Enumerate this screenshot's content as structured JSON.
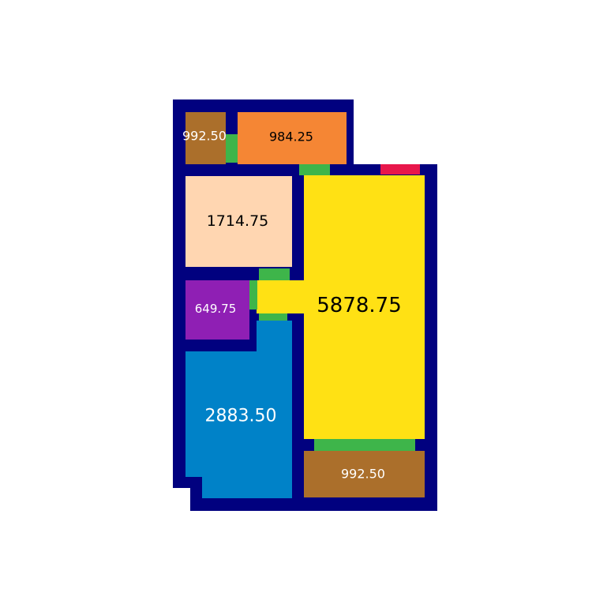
{
  "colors": {
    "wall": "#01017f",
    "door": "#3eb54a",
    "entrance": "#e8174b",
    "background": "#ffffff"
  },
  "rooms": [
    {
      "id": "room-top-left-brown",
      "label": "992.50",
      "fill": "#ab6f2b",
      "text": "#ffffff"
    },
    {
      "id": "room-top-orange",
      "label": "984.25",
      "fill": "#f58634",
      "text": "#000000"
    },
    {
      "id": "room-peach",
      "label": "1714.75",
      "fill": "#ffd6b1",
      "text": "#000000"
    },
    {
      "id": "room-purple",
      "label": "649.75",
      "fill": "#8f1fb4",
      "text": "#ffffff"
    },
    {
      "id": "room-blue",
      "label": "2883.50",
      "fill": "#0082c8",
      "text": "#ffffff"
    },
    {
      "id": "room-yellow",
      "label": "5878.75",
      "fill": "#ffe114",
      "text": "#000000"
    },
    {
      "id": "room-bottom-brown",
      "label": "992.50",
      "fill": "#ab6f2b",
      "text": "#ffffff"
    }
  ]
}
